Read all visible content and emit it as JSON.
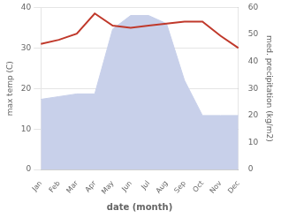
{
  "chart_data": {
    "type": "line",
    "xlabel": "date (month)",
    "ylabel": "max temp (C)",
    "y2label": "med. precipitation (kg/m2)",
    "categories": [
      "Jan",
      "Feb",
      "Mar",
      "Apr",
      "May",
      "Jun",
      "Jul",
      "Aug",
      "Sep",
      "Oct",
      "Nov",
      "Dec"
    ],
    "series": [
      {
        "type": "line",
        "color": "#c0392b",
        "values": [
          31.0,
          32.0,
          33.5,
          38.5,
          35.5,
          35.0,
          35.5,
          36.0,
          36.5,
          36.5,
          33.0,
          30.0
        ]
      },
      {
        "type": "area",
        "color": "#c8d0ea",
        "axis": "y2",
        "values": [
          26,
          27,
          28,
          28,
          52,
          57,
          57,
          54,
          33,
          20,
          20,
          20
        ]
      }
    ],
    "ylim": [
      0,
      40
    ],
    "yticks": [
      0,
      10,
      20,
      30,
      40
    ],
    "y2lim": [
      0,
      60
    ],
    "y2ticks": [
      0,
      10,
      20,
      30,
      40,
      50,
      60
    ],
    "grid": true
  }
}
